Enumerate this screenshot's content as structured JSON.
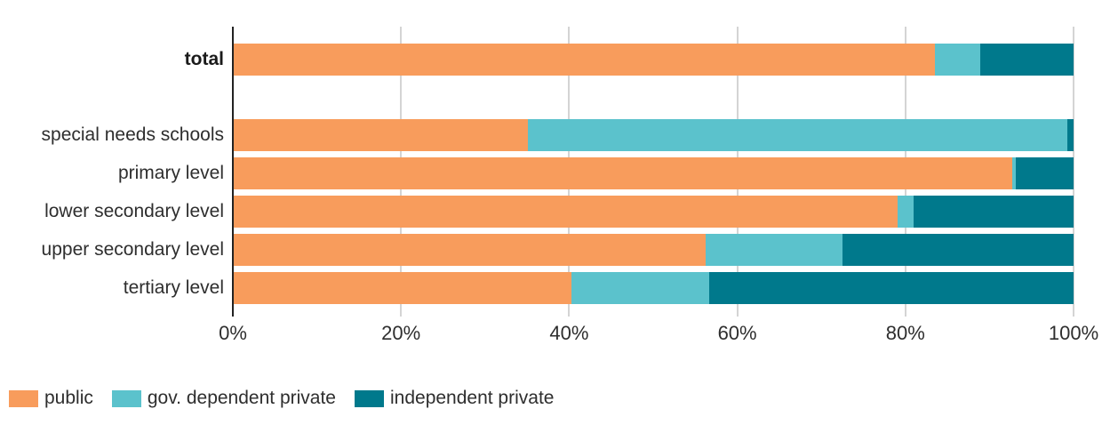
{
  "chart_data": {
    "type": "bar",
    "stacked": true,
    "orientation": "horizontal",
    "unit": "%",
    "title": "",
    "xlabel": "",
    "ylabel": "",
    "xlim": [
      0,
      100
    ],
    "grid": true,
    "legend_position": "bottom",
    "x_ticks": [
      "0%",
      "20%",
      "40%",
      "60%",
      "80%",
      "100%"
    ],
    "x_tick_values": [
      0,
      20,
      40,
      60,
      80,
      100
    ],
    "categories": [
      "total",
      "special needs schools",
      "primary level",
      "lower secondary level",
      "upper secondary level",
      "tertiary level"
    ],
    "emphasized_category": "total",
    "series": [
      {
        "name": "public",
        "color": "#F89C5C",
        "values": [
          83.5,
          35.1,
          92.7,
          79.1,
          56.2,
          40.3
        ]
      },
      {
        "name": "gov. dependent private",
        "color": "#5BC2CC",
        "values": [
          5.4,
          64.2,
          0.4,
          1.9,
          16.3,
          16.4
        ]
      },
      {
        "name": "independent private",
        "color": "#00798C",
        "values": [
          11.1,
          0.7,
          6.9,
          19.0,
          27.5,
          43.3
        ]
      }
    ]
  },
  "colors": {
    "axis": "#222222",
    "gridline": "#D4D4D4",
    "text": "#2E2E2E",
    "background": "#FFFFFF"
  }
}
